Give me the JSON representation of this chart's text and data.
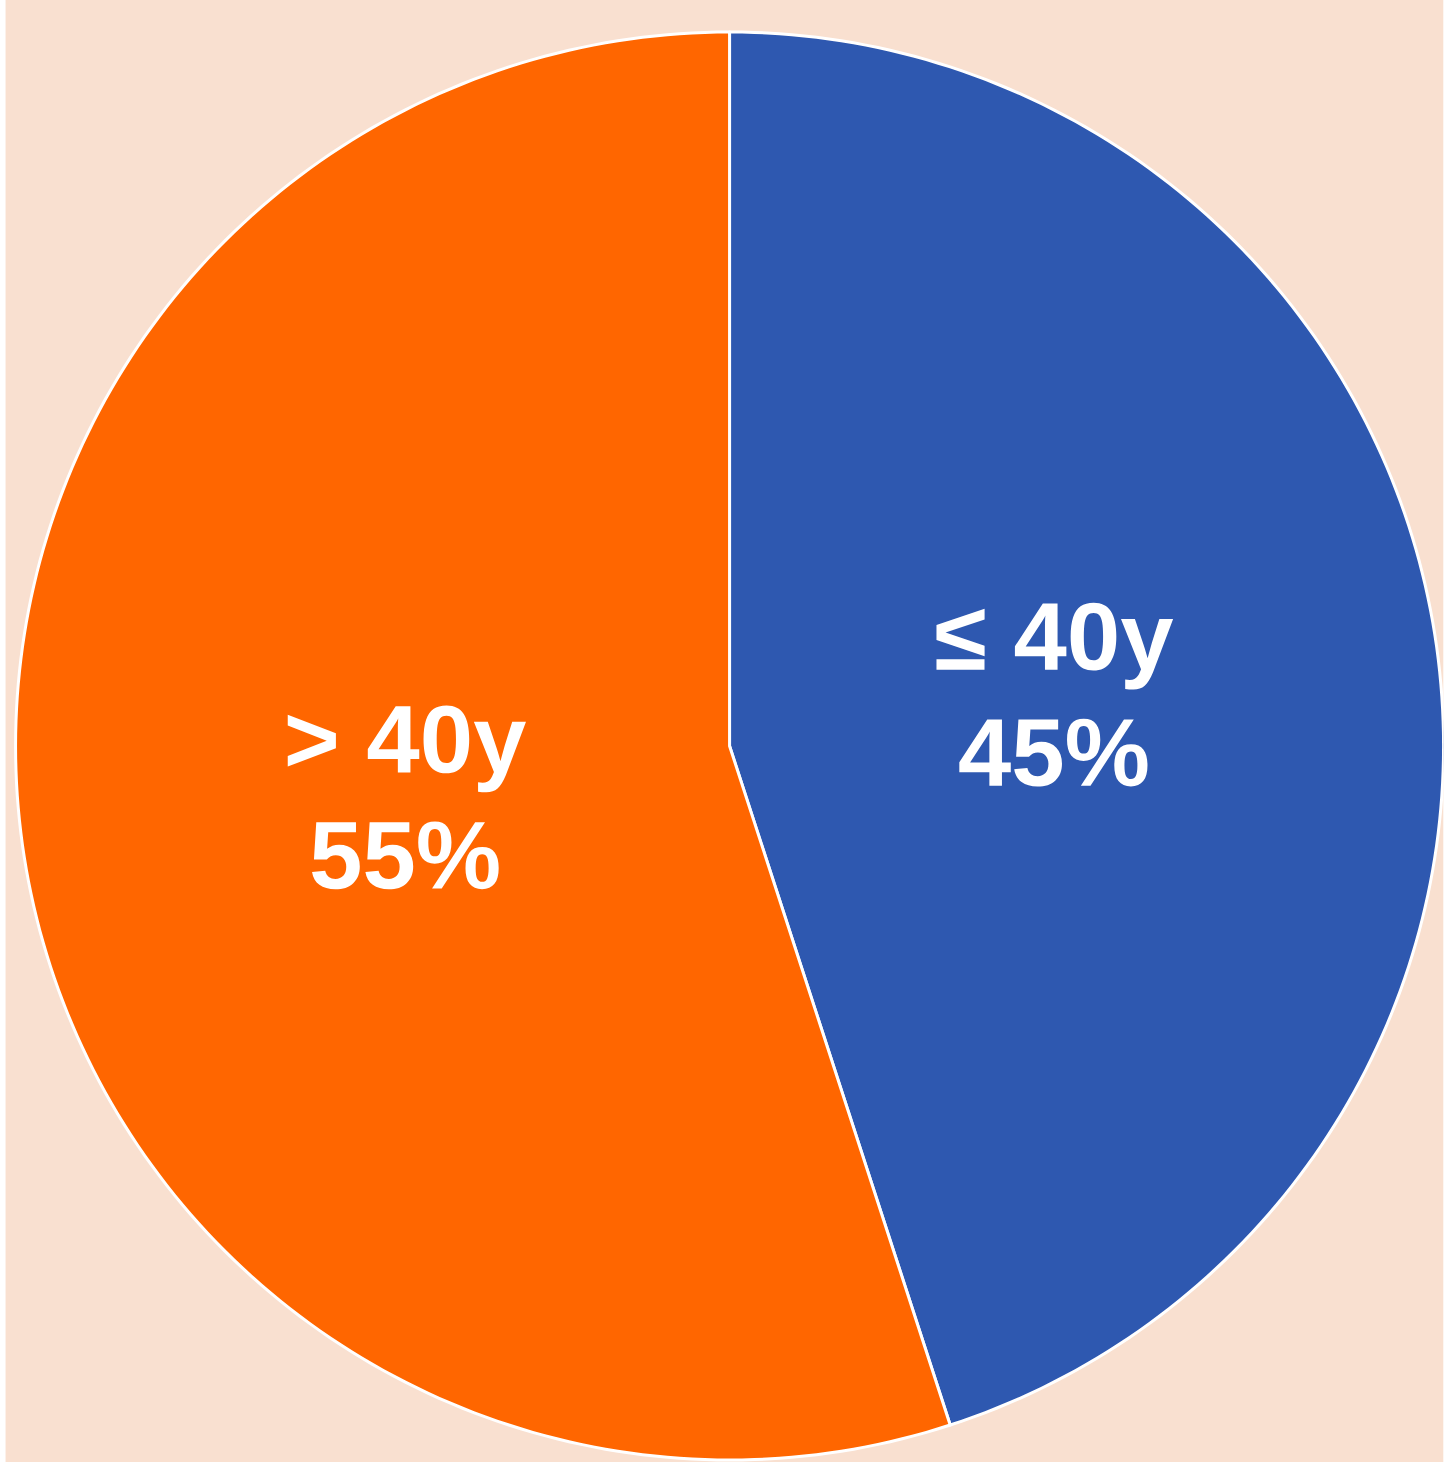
{
  "chart_data": {
    "type": "pie",
    "categories": [
      "≤ 40y",
      "> 40y"
    ],
    "values": [
      45,
      55
    ],
    "value_labels": [
      "45%",
      "55%"
    ],
    "colors": [
      "#2e58b0",
      "#ff6600"
    ]
  }
}
